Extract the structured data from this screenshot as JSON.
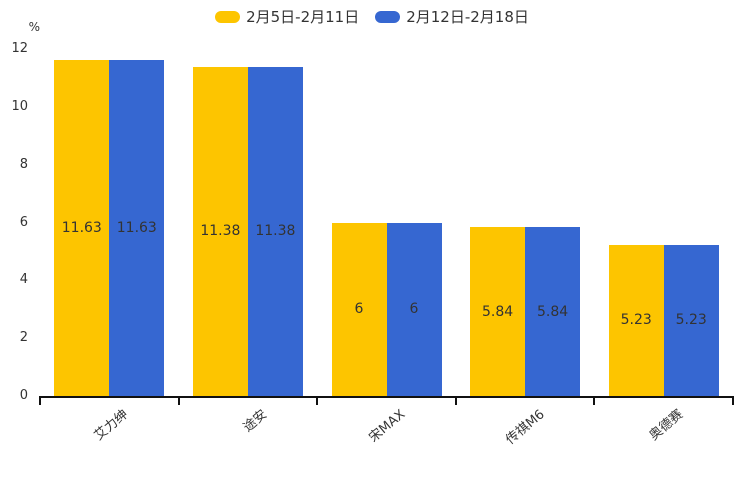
{
  "chart_data": {
    "type": "bar",
    "title": "",
    "categories": [
      "艾力绅",
      "途安",
      "宋MAX",
      "传祺M6",
      "奥德赛"
    ],
    "series": [
      {
        "name": "2月5日-2月11日",
        "color": "#FDC500",
        "values": [
          11.63,
          11.38,
          6,
          5.84,
          5.23
        ]
      },
      {
        "name": "2月12日-2月18日",
        "color": "#3667D1",
        "values": [
          11.63,
          11.38,
          6,
          5.84,
          5.23
        ]
      }
    ],
    "ylabel": "%",
    "yticks": [
      0,
      2,
      4,
      6,
      8,
      10,
      12
    ],
    "ylim": [
      0,
      12
    ],
    "legend_position": "top",
    "grid": false,
    "bar_value_labels_visible": true
  },
  "colors": {
    "axis": "#111111",
    "label_text": "#333333"
  }
}
